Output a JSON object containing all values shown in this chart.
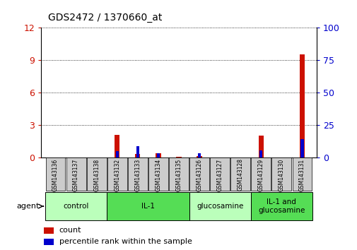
{
  "title": "GDS2472 / 1370660_at",
  "samples": [
    "GSM143136",
    "GSM143137",
    "GSM143138",
    "GSM143132",
    "GSM143133",
    "GSM143134",
    "GSM143135",
    "GSM143126",
    "GSM143127",
    "GSM143128",
    "GSM143129",
    "GSM143130",
    "GSM143131"
  ],
  "count_values": [
    0.0,
    0.0,
    0.0,
    2.1,
    0.3,
    0.4,
    0.05,
    0.15,
    0.0,
    0.0,
    2.0,
    0.0,
    9.5
  ],
  "percentile_values": [
    0.0,
    0.0,
    0.0,
    5.0,
    8.5,
    3.5,
    0.0,
    3.0,
    0.0,
    0.0,
    5.5,
    0.0,
    14.0
  ],
  "ylim_left": [
    0,
    12
  ],
  "ylim_right": [
    0,
    100
  ],
  "yticks_left": [
    0,
    3,
    6,
    9,
    12
  ],
  "yticks_right": [
    0,
    25,
    50,
    75,
    100
  ],
  "groups": [
    {
      "label": "control",
      "start": 0,
      "end": 3,
      "color": "#bbffbb"
    },
    {
      "label": "IL-1",
      "start": 3,
      "end": 7,
      "color": "#55dd55"
    },
    {
      "label": "glucosamine",
      "start": 7,
      "end": 10,
      "color": "#bbffbb"
    },
    {
      "label": "IL-1 and\nglucosamine",
      "start": 10,
      "end": 13,
      "color": "#55dd55"
    }
  ],
  "agent_label": "agent",
  "count_color": "#cc1100",
  "percentile_color": "#0000cc",
  "tick_area_color": "#cccccc",
  "legend_count": "count",
  "legend_percentile": "percentile rank within the sample",
  "bar_width": 0.25
}
